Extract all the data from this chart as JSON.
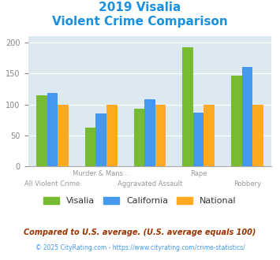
{
  "title_line1": "2019 Visalia",
  "title_line2": "Violent Crime Comparison",
  "title_color": "#1a90e0",
  "groups": [
    "All Violent Crime",
    "Murder & Mans...",
    "Aggravated Assault",
    "Rape",
    "Robbery"
  ],
  "group_labels_row1": [
    "",
    "Murder & Mans...",
    "",
    "Rape",
    ""
  ],
  "group_labels_row2": [
    "All Violent Crime",
    "",
    "Aggravated Assault",
    "",
    "Robbery"
  ],
  "visalia": [
    115,
    62,
    93,
    193,
    147
  ],
  "california": [
    118,
    86,
    108,
    87,
    161
  ],
  "national": [
    100,
    100,
    100,
    100,
    100
  ],
  "color_visalia": "#77bb33",
  "color_california": "#4499ee",
  "color_national": "#ffaa22",
  "ylim": [
    0,
    210
  ],
  "yticks": [
    0,
    50,
    100,
    150,
    200
  ],
  "bg_color": "#dce9f0",
  "footnote1": "Compared to U.S. average. (U.S. average equals 100)",
  "footnote2": "© 2025 CityRating.com - https://www.cityrating.com/crime-statistics/",
  "footnote1_color": "#993300",
  "footnote2_color": "#4499ee",
  "label_color": "#999999"
}
